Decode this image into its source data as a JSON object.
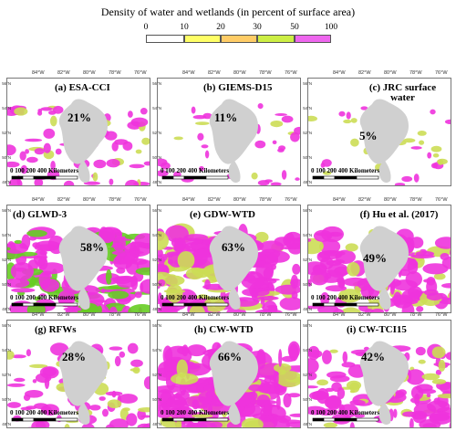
{
  "legend": {
    "title": "Density of water and wetlands (in percent of surface area)",
    "ticks": [
      "0",
      "10",
      "20",
      "30",
      "50",
      "100"
    ],
    "colors": [
      "#ffffff",
      "#ffff66",
      "#ffcc66",
      "#ccee44",
      "#66dd33",
      "#ee55ee"
    ]
  },
  "axis_labels": {
    "longitudes": [
      "84°W",
      "82°W",
      "80°W",
      "78°W",
      "76°W"
    ],
    "latitudes": [
      "56°N",
      "54°N",
      "52°N",
      "50°N",
      "48°N"
    ]
  },
  "scale": {
    "ticks": [
      "0",
      "100",
      "200",
      "400"
    ],
    "unit": "Kilometers"
  },
  "panels": [
    {
      "label": "(a) ESA-CCI",
      "percent": "21%",
      "density_percent": 21
    },
    {
      "label": "(b) GIEMS-D15",
      "percent": "11%",
      "density_percent": 11
    },
    {
      "label": "(c) JRC surface water",
      "percent": "5%",
      "density_percent": 5
    },
    {
      "label": "(d) GLWD-3",
      "percent": "58%",
      "density_percent": 58
    },
    {
      "label": "(e) GDW-WTD",
      "percent": "63%",
      "density_percent": 63
    },
    {
      "label": "(f) Hu et al. (2017)",
      "percent": "49%",
      "density_percent": 49
    },
    {
      "label": "(g) RFWs",
      "percent": "28%",
      "density_percent": 28
    },
    {
      "label": "(h) CW-WTD",
      "percent": "66%",
      "density_percent": 66
    },
    {
      "label": "(i) CW-TCI15",
      "percent": "42%",
      "density_percent": 42
    }
  ],
  "colors": {
    "bay": "#d0d0d0",
    "wetland_high": "#ee33dd",
    "wetland_mid": "#ccdd55",
    "wetland_green": "#66cc22",
    "background": "#ffffff"
  }
}
